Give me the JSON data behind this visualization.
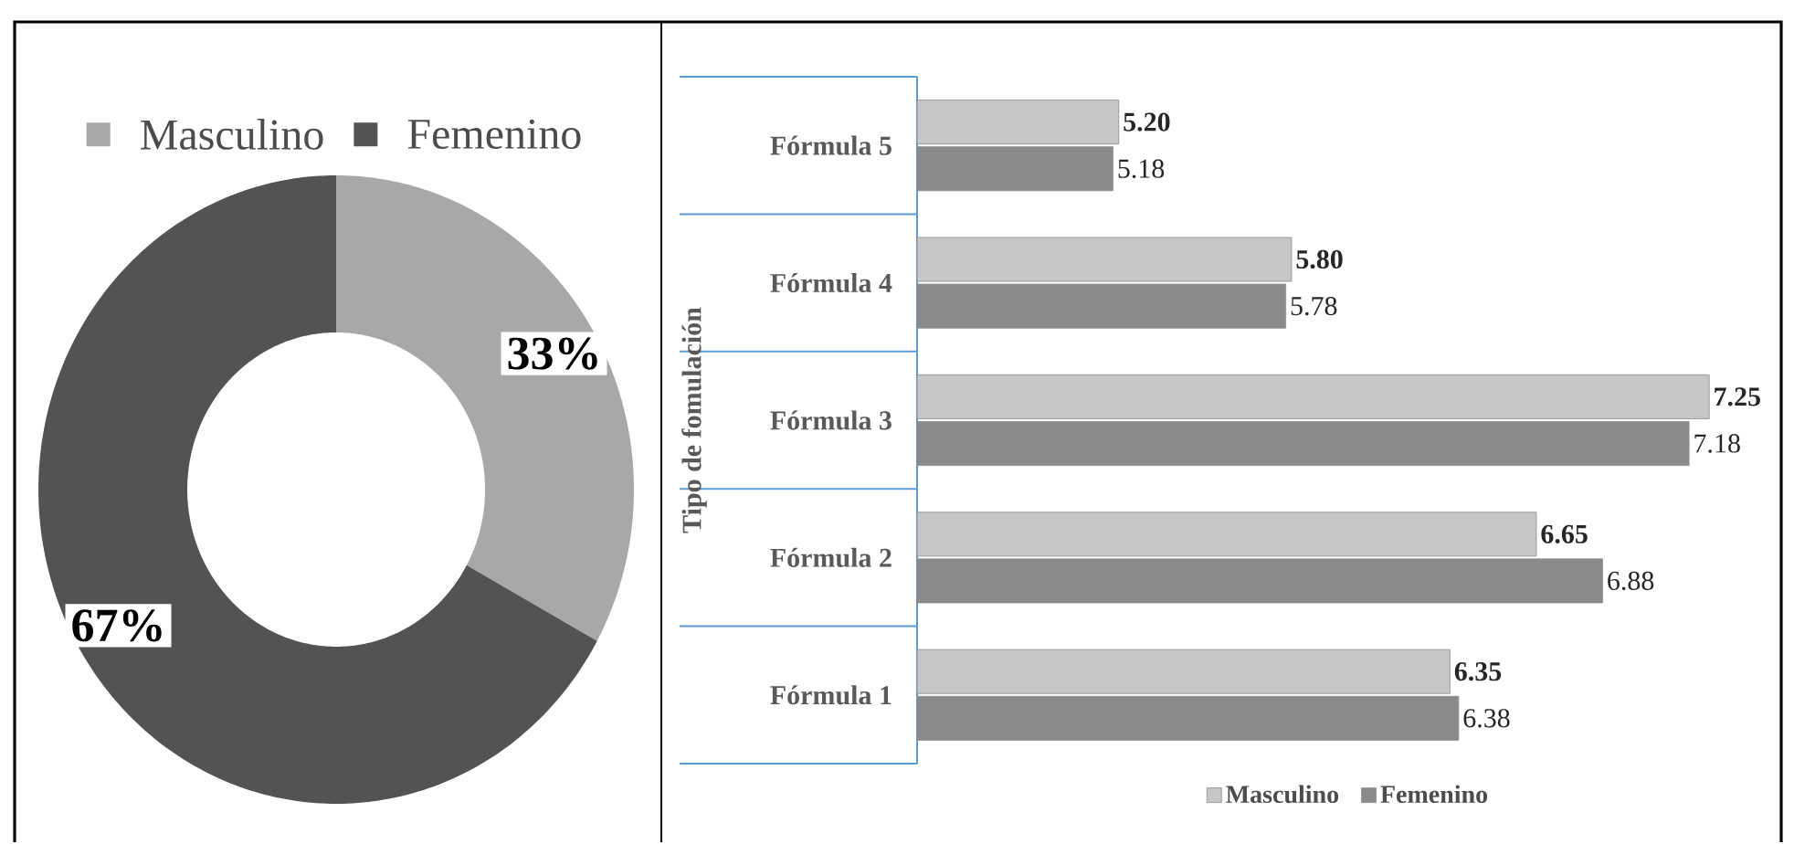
{
  "chart_data": [
    {
      "type": "donut",
      "categories": [
        "Masculino",
        "Femenino"
      ],
      "values": [
        33,
        67
      ],
      "colors": [
        "#a9a7a7",
        "#535353"
      ],
      "value_labels": [
        "33%",
        "67%"
      ],
      "legend": "top"
    },
    {
      "type": "bar",
      "orientation": "horizontal",
      "categories": [
        "Fórmula 5",
        "Fórmula 4",
        "Fórmula 3",
        "Fórmula 2",
        "Fórmula 1"
      ],
      "ylabel": "Tipo de fomulación",
      "xlim": [
        4.5,
        7.5
      ],
      "tick_labels": "y",
      "legend": "bottom",
      "series": [
        {
          "name": "Masculino",
          "color": "#c6c6c6",
          "values": [
            5.2,
            5.8,
            7.25,
            6.65,
            6.35
          ],
          "value_labels": [
            "5.20",
            "5.80",
            "7.25",
            "6.65",
            "6.35"
          ]
        },
        {
          "name": "Femenino",
          "color": "#8a8a8a",
          "values": [
            5.18,
            5.78,
            7.18,
            6.88,
            6.38
          ],
          "value_labels": [
            "5.18",
            "5.78",
            "7.18",
            "6.88",
            "6.38"
          ]
        }
      ]
    }
  ]
}
